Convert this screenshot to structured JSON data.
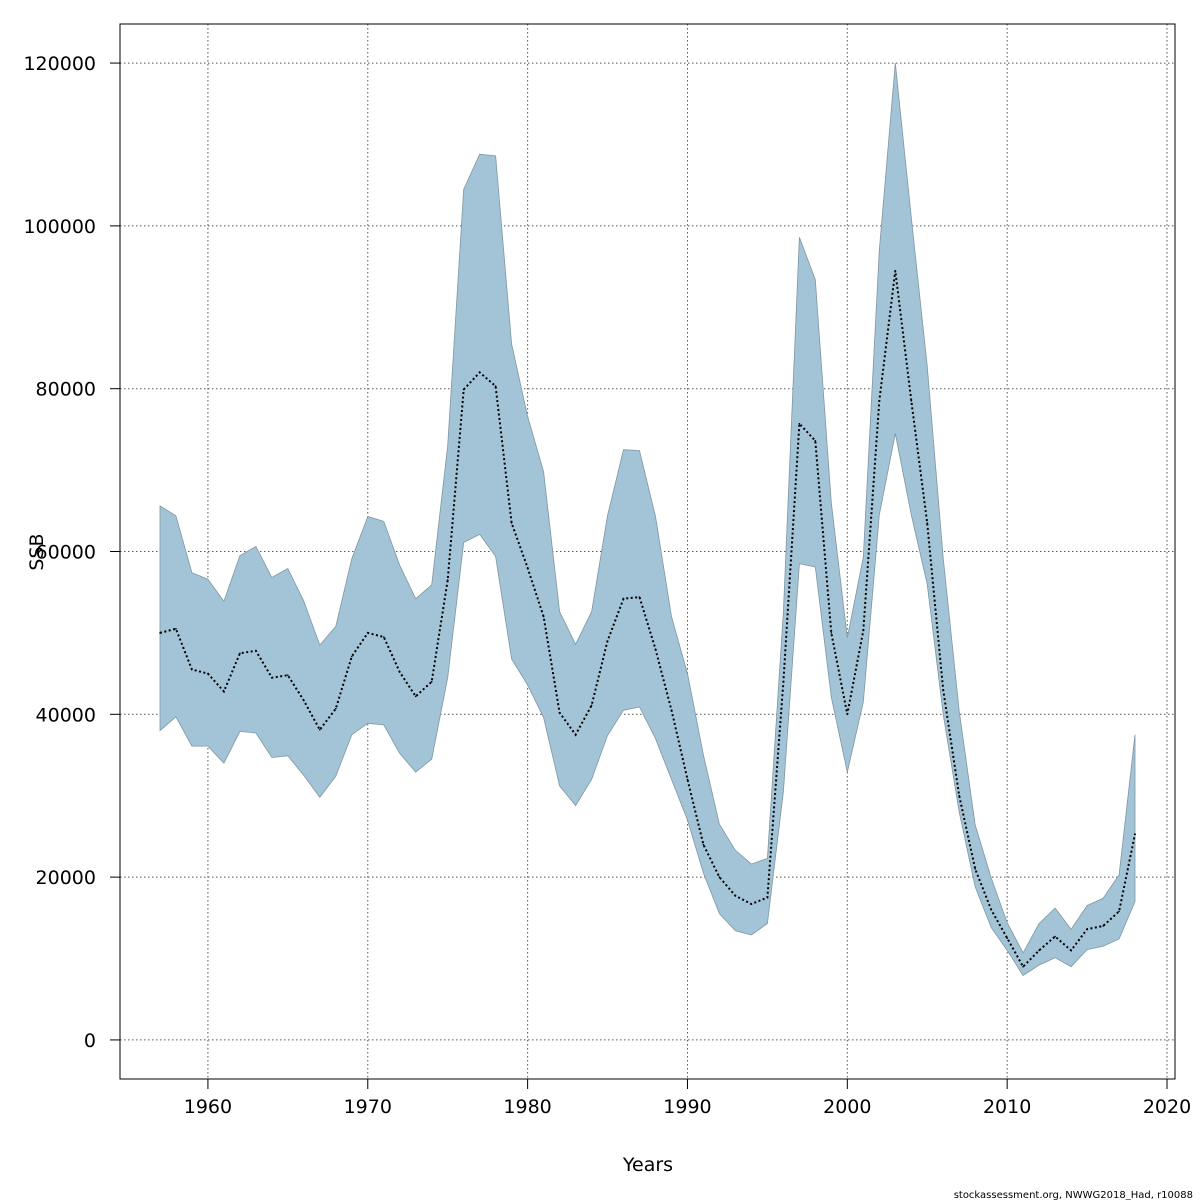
{
  "chart_data": {
    "type": "area",
    "title": "",
    "xlabel": "Years",
    "ylabel": "SSB",
    "xlim": [
      1954.5,
      2020.5
    ],
    "ylim": [
      -4800,
      124800
    ],
    "xticks": [
      1960,
      1970,
      1980,
      1990,
      2000,
      2010,
      2020
    ],
    "yticks": [
      0,
      20000,
      40000,
      60000,
      80000,
      100000,
      120000
    ],
    "grid": true,
    "colors": {
      "band": "#a3c4d6",
      "band_edge": "#7f96a3",
      "line": "#000000",
      "grid": "#555555"
    },
    "years": [
      1957,
      1958,
      1959,
      1960,
      1961,
      1962,
      1963,
      1964,
      1965,
      1966,
      1967,
      1968,
      1969,
      1970,
      1971,
      1972,
      1973,
      1974,
      1975,
      1976,
      1977,
      1978,
      1979,
      1980,
      1981,
      1982,
      1983,
      1984,
      1985,
      1986,
      1987,
      1988,
      1989,
      1990,
      1991,
      1992,
      1993,
      1994,
      1995,
      1996,
      1997,
      1998,
      1999,
      2000,
      2001,
      2002,
      2003,
      2004,
      2005,
      2006,
      2007,
      2008,
      2009,
      2010,
      2011,
      2012,
      2013,
      2014,
      2015,
      2016,
      2017,
      2018
    ],
    "series": [
      {
        "name": "SSB estimate",
        "style": "dotted-line",
        "values": [
          50000,
          50500,
          45500,
          45000,
          42800,
          47500,
          47800,
          44500,
          44800,
          41700,
          38100,
          40700,
          47100,
          50000,
          49500,
          45200,
          42200,
          44000,
          56500,
          79900,
          82000,
          80300,
          63500,
          58000,
          52000,
          40200,
          37500,
          41100,
          49000,
          54200,
          54400,
          48000,
          40500,
          32000,
          24000,
          20000,
          17700,
          16700,
          17500,
          44000,
          75700,
          73600,
          50000,
          40000,
          50300,
          78500,
          94500,
          78500,
          63500,
          43000,
          30000,
          21000,
          16000,
          12500,
          9000,
          11000,
          12700,
          11000,
          13600,
          14000,
          15800,
          25300
        ]
      },
      {
        "name": "Upper bound",
        "style": "band-upper",
        "values": [
          65600,
          64400,
          57400,
          56600,
          53900,
          59500,
          60600,
          56800,
          57900,
          53900,
          48500,
          50800,
          59100,
          64300,
          63700,
          58300,
          54200,
          55900,
          73000,
          104500,
          108800,
          108600,
          85500,
          76600,
          69800,
          52600,
          48600,
          52600,
          64400,
          72500,
          72400,
          64300,
          52000,
          45000,
          35000,
          26500,
          23300,
          21600,
          22300,
          52600,
          98600,
          93400,
          66000,
          49400,
          59300,
          97000,
          120000,
          101000,
          82800,
          59200,
          40400,
          26400,
          19900,
          14400,
          10700,
          14300,
          16200,
          13600,
          16500,
          17400,
          20300,
          37500
        ]
      },
      {
        "name": "Lower bound",
        "style": "band-lower",
        "values": [
          38000,
          39700,
          36100,
          36100,
          34000,
          37900,
          37700,
          34700,
          34900,
          32500,
          29800,
          32400,
          37500,
          38900,
          38700,
          35200,
          32900,
          34500,
          44500,
          61100,
          62100,
          59400,
          46800,
          43600,
          39600,
          31200,
          28800,
          32000,
          37400,
          40500,
          40900,
          37000,
          32000,
          27000,
          20500,
          15500,
          13400,
          12900,
          14300,
          30500,
          58500,
          58100,
          42100,
          32900,
          41500,
          64500,
          74500,
          64500,
          56000,
          40000,
          28000,
          18800,
          13800,
          11000,
          7900,
          9200,
          10100,
          9000,
          11100,
          11500,
          12400,
          17000
        ]
      }
    ],
    "footer": "stockassessment.org, NWWG2018_Had, r10088"
  }
}
